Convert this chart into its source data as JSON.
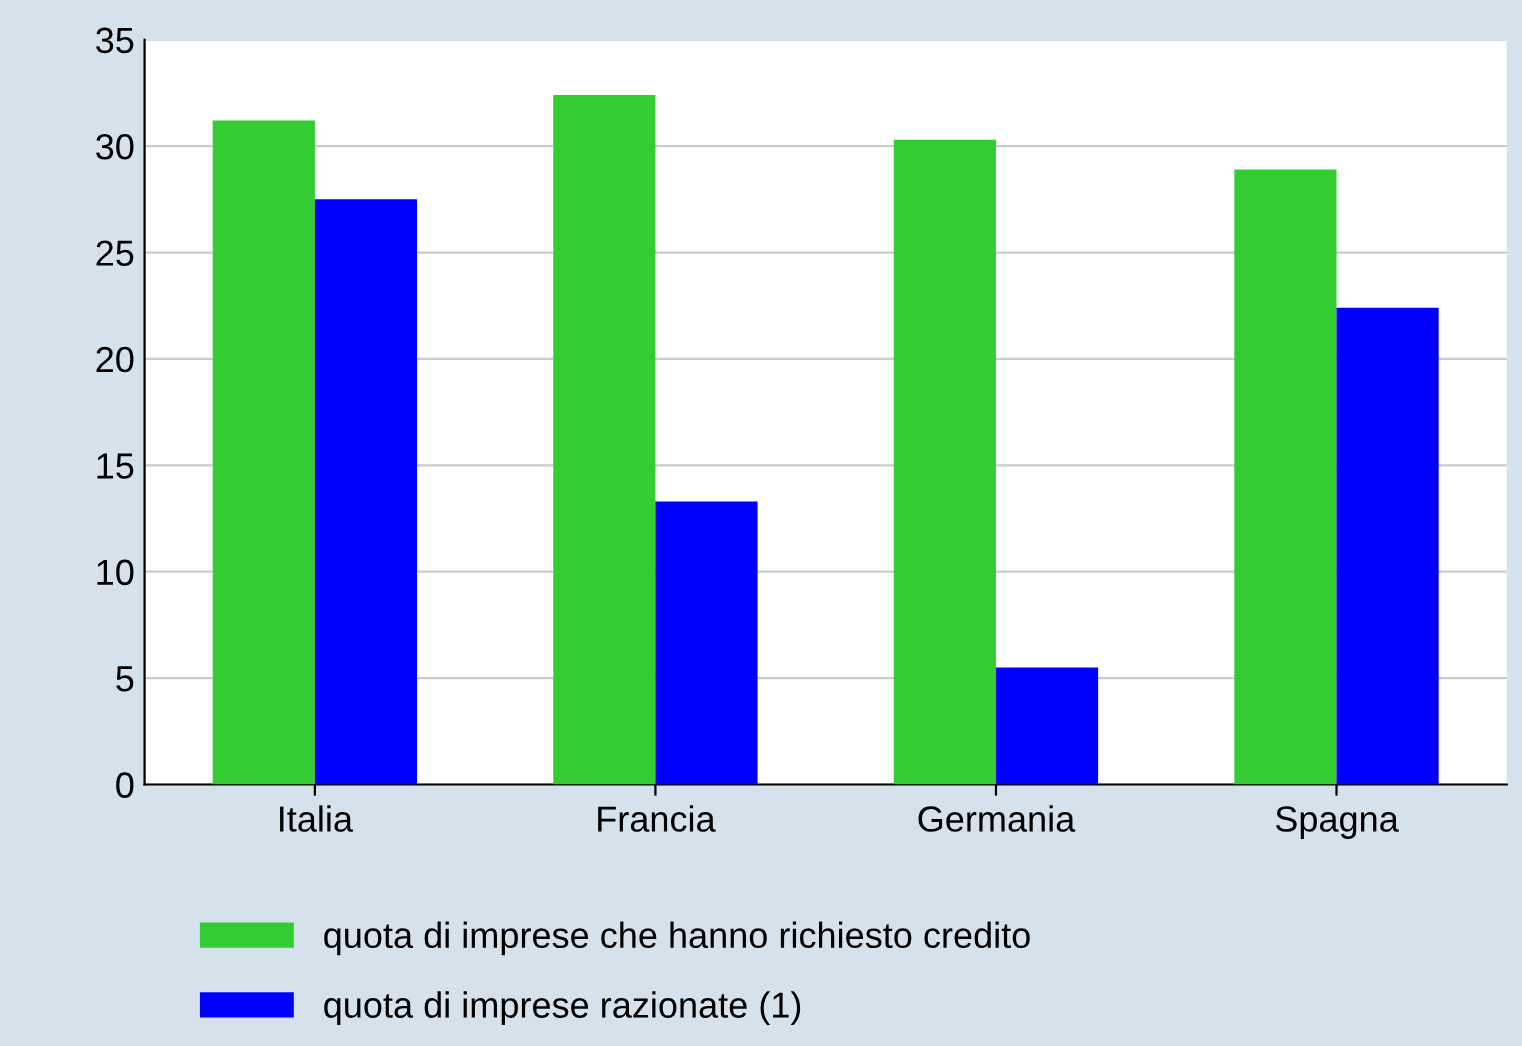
{
  "chart_data": {
    "type": "bar",
    "categories": [
      "Italia",
      "Francia",
      "Germania",
      "Spagna"
    ],
    "series": [
      {
        "name": "quota di imprese che hanno richiesto credito",
        "color": "#33cc33",
        "values": [
          31.2,
          32.4,
          30.3,
          28.9
        ]
      },
      {
        "name": "quota di imprese razionate (1)",
        "color": "#0000ff",
        "values": [
          27.5,
          13.3,
          5.5,
          22.4
        ]
      }
    ],
    "ylim": [
      0,
      35
    ],
    "yticks": [
      0,
      5,
      10,
      15,
      20,
      25,
      30,
      35
    ],
    "grid": "y",
    "legend": "bottom"
  }
}
